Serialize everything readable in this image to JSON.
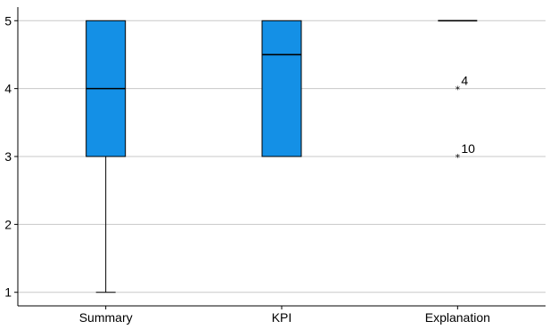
{
  "chart_data": {
    "type": "boxplot",
    "title": "",
    "xlabel": "",
    "ylabel": "",
    "categories": [
      "Summary",
      "KPI",
      "Explanation"
    ],
    "ylim": [
      0.8,
      5.2
    ],
    "yticks": [
      1,
      2,
      3,
      4,
      5
    ],
    "grid": "horizontal",
    "box_color": "#1490E6",
    "boxes": [
      {
        "category": "Summary",
        "whisker_low": 1,
        "q1": 3,
        "median": 4,
        "q3": 5,
        "whisker_high": 5,
        "outliers": []
      },
      {
        "category": "KPI",
        "whisker_low": 3,
        "q1": 3,
        "median": 4.5,
        "q3": 5,
        "whisker_high": 5,
        "outliers": []
      },
      {
        "category": "Explanation",
        "whisker_low": 5,
        "q1": 5,
        "median": 5,
        "q3": 5,
        "whisker_high": 5,
        "outliers": [
          {
            "value": 4,
            "label": "4",
            "marker": "*"
          },
          {
            "value": 3,
            "label": "10",
            "marker": "*"
          }
        ]
      }
    ]
  }
}
